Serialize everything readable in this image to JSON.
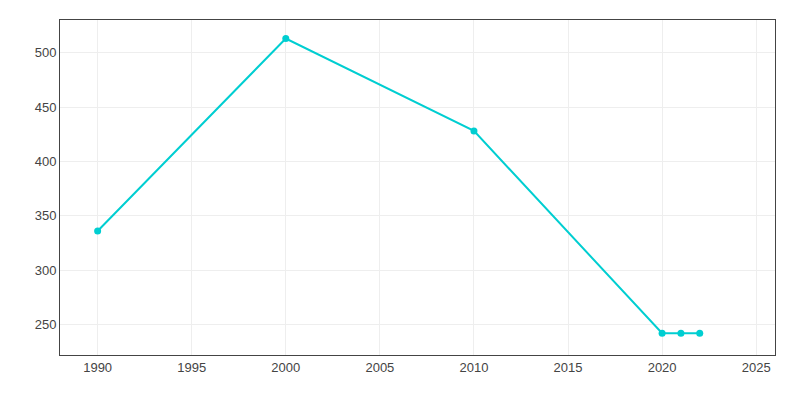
{
  "chart_data": {
    "type": "line",
    "x": [
      1990,
      2000,
      2010,
      2020,
      2021,
      2022
    ],
    "values": [
      336,
      513,
      428,
      242,
      242,
      242
    ],
    "color": "#00CED1",
    "marker": "circle",
    "xlim": [
      1988,
      2026
    ],
    "xticks": [
      1990,
      1995,
      2000,
      2005,
      2010,
      2015,
      2020,
      2025
    ],
    "ylim": [
      222,
      530
    ],
    "yticks": [
      250,
      300,
      350,
      400,
      450,
      500
    ],
    "grid": true
  }
}
